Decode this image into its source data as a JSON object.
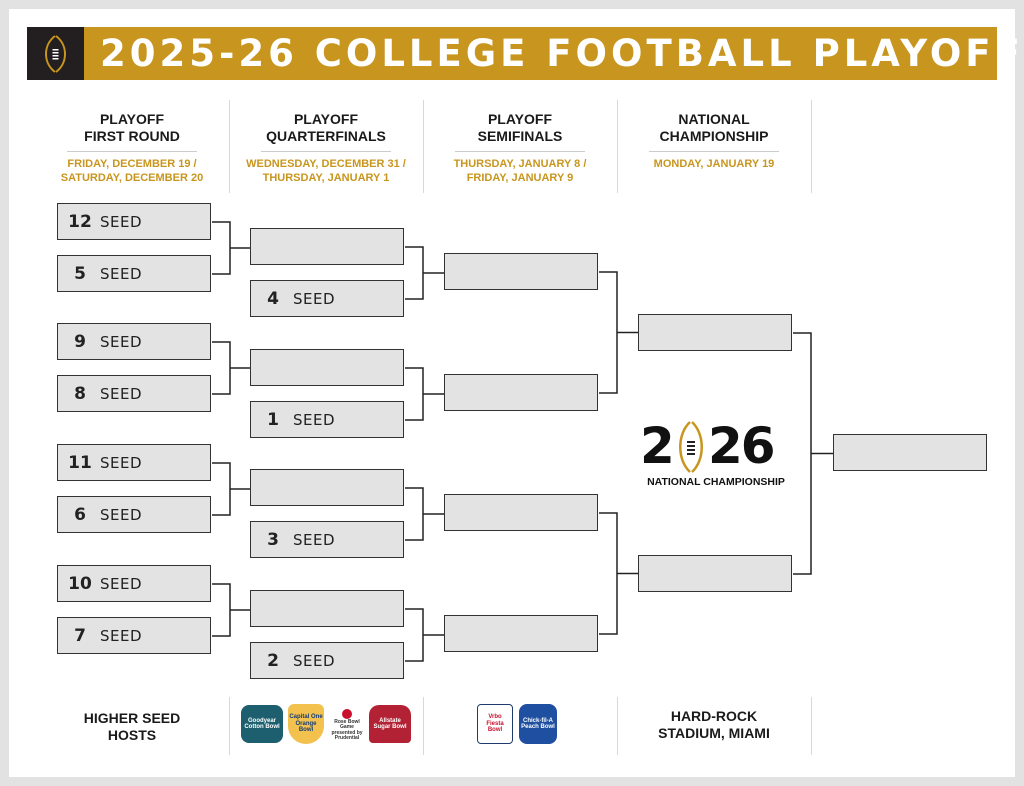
{
  "header": {
    "title_year": "2025-26",
    "title_rest": "COLLEGE FOOTBALL PLAYOFF",
    "logo_icon": "cfp-football-trophy-icon"
  },
  "colors": {
    "gold": "#c8961e",
    "black": "#231f20",
    "box_fill": "#e3e3e3"
  },
  "rounds": [
    {
      "title": [
        "PLAYOFF",
        "FIRST ROUND"
      ],
      "dates": [
        "FRIDAY, DECEMBER 19 /",
        "SATURDAY, DECEMBER 20"
      ]
    },
    {
      "title": [
        "PLAYOFF",
        "QUARTERFINALS"
      ],
      "dates": [
        "WEDNESDAY, DECEMBER 31 /",
        "THURSDAY, JANUARY 1"
      ]
    },
    {
      "title": [
        "PLAYOFF",
        "SEMIFINALS"
      ],
      "dates": [
        "THURSDAY, JANUARY 8 /",
        "FRIDAY, JANUARY 9"
      ]
    },
    {
      "title": [
        "NATIONAL",
        "CHAMPIONSHIP"
      ],
      "dates": [
        "MONDAY, JANUARY 19"
      ]
    }
  ],
  "bracket": {
    "seed_label": "SEED",
    "first_round": [
      "12",
      "5",
      "9",
      "8",
      "11",
      "6",
      "10",
      "7"
    ],
    "quarterfinals": [
      "",
      "4",
      "",
      "1",
      "",
      "3",
      "",
      "2"
    ],
    "semifinals": [
      "",
      "",
      "",
      ""
    ],
    "championship": [
      "",
      ""
    ],
    "champion": [
      ""
    ]
  },
  "center_logo": {
    "year_left": "2",
    "year_right": "26",
    "subtitle": "NATIONAL CHAMPIONSHIP"
  },
  "footer": {
    "first_round_venue": [
      "HIGHER SEED",
      "HOSTS"
    ],
    "quarterfinal_bowls": [
      "Goodyear Cotton Bowl",
      "Capital One Orange Bowl",
      "Rose Bowl Game presented by Prudential",
      "Allstate Sugar Bowl"
    ],
    "semifinal_bowls": [
      "Vrbo Fiesta Bowl",
      "Chick-fil-A Peach Bowl"
    ],
    "championship_venue": [
      "HARD-ROCK",
      "STADIUM, MIAMI"
    ]
  }
}
